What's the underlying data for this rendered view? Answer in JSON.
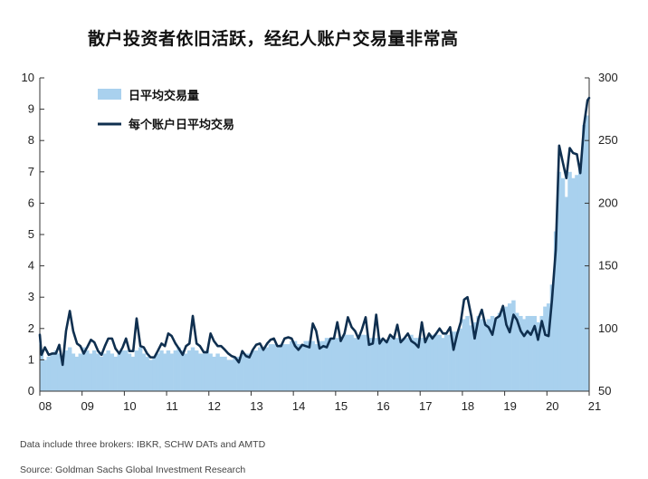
{
  "title": "散户投资者依旧活跃，经纪人账户交易量非常高",
  "note": "Data include three brokers: IBKR, SCHW DATs and AMTD",
  "source": "Source: Goldman Sachs Global Investment Research",
  "colors": {
    "bars": "#a9d1ee",
    "line": "#0f2f4f",
    "axis": "#333333"
  },
  "chart_data": {
    "type": "bar",
    "title": "散户投资者依旧活跃，经纪人账户交易量非常高",
    "x_ticks": [
      "08",
      "09",
      "10",
      "11",
      "12",
      "13",
      "14",
      "15",
      "16",
      "17",
      "18",
      "19",
      "20",
      "21"
    ],
    "x_range": [
      2008.0,
      2021.0
    ],
    "y_left": {
      "min": 0,
      "max": 10,
      "ticks": [
        "0",
        "1",
        "2",
        "3",
        "4",
        "5",
        "6",
        "7",
        "8",
        "9",
        "10"
      ]
    },
    "y_right": {
      "min": 50,
      "max": 300,
      "ticks": [
        "50",
        "100",
        "150",
        "200",
        "250",
        "300"
      ]
    },
    "grid": false,
    "legend_position": "top-left",
    "series": [
      {
        "name": "日平均交易量",
        "type": "bar",
        "axis": "left",
        "x": [
          2008.04,
          2008.12,
          2008.21,
          2008.29,
          2008.38,
          2008.46,
          2008.54,
          2008.62,
          2008.71,
          2008.79,
          2008.88,
          2008.96,
          2009.04,
          2009.12,
          2009.21,
          2009.29,
          2009.38,
          2009.46,
          2009.54,
          2009.62,
          2009.71,
          2009.79,
          2009.88,
          2009.96,
          2010.04,
          2010.12,
          2010.21,
          2010.29,
          2010.38,
          2010.46,
          2010.54,
          2010.62,
          2010.71,
          2010.79,
          2010.88,
          2010.96,
          2011.04,
          2011.12,
          2011.21,
          2011.29,
          2011.38,
          2011.46,
          2011.54,
          2011.62,
          2011.71,
          2011.79,
          2011.88,
          2011.96,
          2012.04,
          2012.12,
          2012.21,
          2012.29,
          2012.38,
          2012.46,
          2012.54,
          2012.62,
          2012.71,
          2012.79,
          2012.88,
          2012.96,
          2013.04,
          2013.12,
          2013.21,
          2013.29,
          2013.38,
          2013.46,
          2013.54,
          2013.62,
          2013.71,
          2013.79,
          2013.88,
          2013.96,
          2014.04,
          2014.12,
          2014.21,
          2014.29,
          2014.38,
          2014.46,
          2014.54,
          2014.62,
          2014.71,
          2014.79,
          2014.88,
          2014.96,
          2015.04,
          2015.12,
          2015.21,
          2015.29,
          2015.38,
          2015.46,
          2015.54,
          2015.62,
          2015.71,
          2015.79,
          2015.88,
          2015.96,
          2016.04,
          2016.12,
          2016.21,
          2016.29,
          2016.38,
          2016.46,
          2016.54,
          2016.62,
          2016.71,
          2016.79,
          2016.88,
          2016.96,
          2017.04,
          2017.12,
          2017.21,
          2017.29,
          2017.38,
          2017.46,
          2017.54,
          2017.62,
          2017.71,
          2017.79,
          2017.88,
          2017.96,
          2018.04,
          2018.12,
          2018.21,
          2018.29,
          2018.38,
          2018.46,
          2018.54,
          2018.62,
          2018.71,
          2018.79,
          2018.88,
          2018.96,
          2019.04,
          2019.12,
          2019.21,
          2019.29,
          2019.38,
          2019.46,
          2019.54,
          2019.62,
          2019.71,
          2019.79,
          2019.88,
          2019.96,
          2020.04,
          2020.12,
          2020.21,
          2020.29,
          2020.38,
          2020.46,
          2020.54,
          2020.62,
          2020.71,
          2020.79,
          2020.88,
          2020.96
        ],
        "values": [
          1.2,
          1.0,
          1.1,
          1.2,
          1.3,
          1.2,
          1.1,
          1.3,
          1.4,
          1.2,
          1.1,
          1.2,
          1.4,
          1.3,
          1.2,
          1.3,
          1.2,
          1.1,
          1.2,
          1.3,
          1.2,
          1.1,
          1.2,
          1.3,
          1.3,
          1.2,
          1.1,
          1.3,
          1.4,
          1.2,
          1.1,
          1.0,
          1.1,
          1.2,
          1.3,
          1.2,
          1.3,
          1.2,
          1.3,
          1.4,
          1.3,
          1.2,
          1.3,
          1.4,
          1.3,
          1.2,
          1.2,
          1.3,
          1.2,
          1.1,
          1.2,
          1.1,
          1.1,
          1.0,
          1.0,
          1.1,
          1.1,
          1.2,
          1.2,
          1.2,
          1.3,
          1.3,
          1.4,
          1.4,
          1.4,
          1.5,
          1.5,
          1.4,
          1.5,
          1.5,
          1.5,
          1.6,
          1.6,
          1.5,
          1.5,
          1.6,
          1.6,
          1.6,
          1.5,
          1.6,
          1.6,
          1.7,
          1.7,
          1.7,
          1.7,
          1.7,
          1.8,
          1.8,
          1.8,
          1.7,
          1.7,
          1.8,
          1.8,
          1.7,
          1.7,
          1.7,
          1.7,
          1.6,
          1.6,
          1.7,
          1.7,
          1.7,
          1.6,
          1.7,
          1.7,
          1.8,
          1.7,
          1.7,
          1.7,
          1.7,
          1.8,
          1.8,
          1.8,
          1.8,
          1.7,
          1.8,
          1.8,
          1.9,
          1.9,
          2.0,
          2.3,
          2.4,
          2.1,
          2.2,
          2.4,
          2.3,
          2.2,
          2.3,
          2.4,
          2.3,
          2.5,
          2.6,
          2.7,
          2.8,
          2.9,
          2.5,
          2.4,
          2.3,
          2.4,
          2.4,
          2.4,
          2.2,
          2.4,
          2.7,
          2.8,
          3.4,
          5.1,
          7.0,
          6.8,
          6.2,
          7.0,
          6.8,
          6.9,
          7.2,
          8.5,
          8.8
        ]
      },
      {
        "name": "每个账户日平均交易",
        "type": "line",
        "axis": "right",
        "x": [
          2008.0,
          2008.04,
          2008.12,
          2008.21,
          2008.29,
          2008.38,
          2008.46,
          2008.54,
          2008.62,
          2008.71,
          2008.79,
          2008.88,
          2008.96,
          2009.04,
          2009.12,
          2009.21,
          2009.29,
          2009.38,
          2009.46,
          2009.54,
          2009.62,
          2009.71,
          2009.79,
          2009.88,
          2009.96,
          2010.04,
          2010.12,
          2010.21,
          2010.29,
          2010.38,
          2010.46,
          2010.54,
          2010.62,
          2010.71,
          2010.79,
          2010.88,
          2010.96,
          2011.04,
          2011.12,
          2011.21,
          2011.29,
          2011.38,
          2011.46,
          2011.54,
          2011.62,
          2011.71,
          2011.79,
          2011.88,
          2011.96,
          2012.04,
          2012.12,
          2012.21,
          2012.29,
          2012.38,
          2012.46,
          2012.54,
          2012.62,
          2012.71,
          2012.79,
          2012.88,
          2012.96,
          2013.04,
          2013.12,
          2013.21,
          2013.29,
          2013.38,
          2013.46,
          2013.54,
          2013.62,
          2013.71,
          2013.79,
          2013.88,
          2013.96,
          2014.04,
          2014.12,
          2014.21,
          2014.29,
          2014.38,
          2014.46,
          2014.54,
          2014.62,
          2014.71,
          2014.79,
          2014.88,
          2014.96,
          2015.04,
          2015.12,
          2015.21,
          2015.29,
          2015.38,
          2015.46,
          2015.54,
          2015.62,
          2015.71,
          2015.79,
          2015.88,
          2015.96,
          2016.04,
          2016.12,
          2016.21,
          2016.29,
          2016.38,
          2016.46,
          2016.54,
          2016.62,
          2016.71,
          2016.79,
          2016.88,
          2016.96,
          2017.04,
          2017.12,
          2017.21,
          2017.29,
          2017.38,
          2017.46,
          2017.54,
          2017.62,
          2017.71,
          2017.79,
          2017.88,
          2017.96,
          2018.04,
          2018.12,
          2018.21,
          2018.29,
          2018.38,
          2018.46,
          2018.54,
          2018.62,
          2018.71,
          2018.79,
          2018.88,
          2018.96,
          2019.04,
          2019.12,
          2019.21,
          2019.29,
          2019.38,
          2019.46,
          2019.54,
          2019.62,
          2019.71,
          2019.79,
          2019.88,
          2019.96,
          2020.04,
          2020.12,
          2020.21,
          2020.29,
          2020.38,
          2020.46,
          2020.54,
          2020.62,
          2020.71,
          2020.79,
          2020.88,
          2020.96,
          2021.0
        ],
        "values": [
          95,
          79,
          85,
          79,
          80,
          80,
          87,
          71,
          98,
          114,
          98,
          88,
          86,
          80,
          85,
          91,
          89,
          82,
          79,
          86,
          92,
          92,
          84,
          80,
          85,
          92,
          82,
          82,
          108,
          86,
          85,
          80,
          77,
          77,
          82,
          88,
          86,
          96,
          94,
          88,
          84,
          79,
          86,
          88,
          110,
          88,
          86,
          81,
          81,
          96,
          90,
          86,
          86,
          83,
          80,
          78,
          77,
          73,
          82,
          78,
          77,
          83,
          87,
          88,
          83,
          88,
          91,
          92,
          86,
          86,
          92,
          93,
          92,
          86,
          83,
          87,
          86,
          85,
          104,
          98,
          84,
          86,
          85,
          92,
          92,
          105,
          90,
          96,
          109,
          101,
          98,
          92,
          99,
          109,
          87,
          88,
          111,
          88,
          92,
          89,
          95,
          92,
          103,
          89,
          92,
          96,
          90,
          88,
          85,
          105,
          89,
          96,
          92,
          96,
          100,
          96,
          96,
          101,
          83,
          96,
          105,
          123,
          125,
          110,
          92,
          108,
          115,
          103,
          101,
          95,
          108,
          110,
          118,
          103,
          97,
          111,
          107,
          98,
          94,
          98,
          95,
          102,
          91,
          106,
          95,
          94,
          123,
          163,
          246,
          232,
          220,
          244,
          240,
          239,
          224,
          263,
          282,
          284
        ]
      }
    ]
  }
}
